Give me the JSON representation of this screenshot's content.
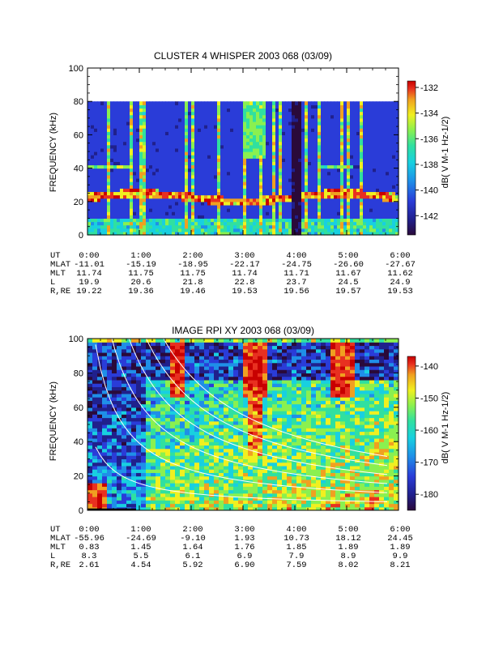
{
  "chart_data": [
    {
      "type": "heatmap",
      "title": "CLUSTER 4 WHISPER 2003 068 (03/09)",
      "ylabel": "FREQUENCY (kHz)",
      "ylim": [
        0,
        100
      ],
      "yticks": [
        0,
        20,
        40,
        60,
        80,
        100
      ],
      "data_ylim": [
        0,
        80
      ],
      "xlim": [
        "0:00",
        "6:00"
      ],
      "colorbar": {
        "label": "dB( V M⁻¹ Hz⁻¹ᐟ²)",
        "label_text": "dB( V M-1 Hz-1/2)",
        "range": [
          -143.5,
          -131.5
        ],
        "ticks": [
          -132,
          -134,
          -136,
          -138,
          -140,
          -142
        ]
      },
      "ephemeris": {
        "rows": [
          {
            "name": "UT",
            "values": [
              "0:00",
              "1:00",
              "2:00",
              "3:00",
              "4:00",
              "5:00",
              "6:00"
            ]
          },
          {
            "name": "MLAT",
            "values": [
              "-11.01",
              "-15.19",
              "-18.95",
              "-22.17",
              "-24.75",
              "-26.60",
              "-27.67"
            ]
          },
          {
            "name": "MLT",
            "values": [
              "11.74",
              "11.75",
              "11.75",
              "11.74",
              "11.71",
              "11.67",
              "11.62"
            ]
          },
          {
            "name": "L",
            "values": [
              "19.9",
              "20.6",
              "21.8",
              "22.8",
              "23.7",
              "24.5",
              "24.9"
            ]
          },
          {
            "name": "R,RE",
            "values": [
              "19.22",
              "19.36",
              "19.46",
              "19.53",
              "19.56",
              "19.57",
              "19.53"
            ]
          }
        ]
      }
    },
    {
      "type": "heatmap",
      "title": "IMAGE RPI XY 2003 068 (03/09)",
      "ylabel": "FREQUENCY (kHz)",
      "ylim": [
        0,
        100
      ],
      "yticks": [
        0,
        20,
        40,
        60,
        80,
        100
      ],
      "xlim": [
        "0:00",
        "6:00"
      ],
      "colorbar": {
        "label_text": "dB( V M-1 Hz-1/2)",
        "range": [
          -185,
          -137
        ],
        "ticks": [
          -140,
          -150,
          -160,
          -170,
          -180
        ]
      },
      "ephemeris": {
        "rows": [
          {
            "name": "UT",
            "values": [
              "0:00",
              "1:00",
              "2:00",
              "3:00",
              "4:00",
              "5:00",
              "6:00"
            ]
          },
          {
            "name": "MLAT",
            "values": [
              "-55.96",
              "-24.69",
              "-9.10",
              "1.93",
              "10.73",
              "18.12",
              "24.45"
            ]
          },
          {
            "name": "MLT",
            "values": [
              "0.83",
              "1.45",
              "1.64",
              "1.76",
              "1.85",
              "1.89",
              "1.89"
            ]
          },
          {
            "name": "L",
            "values": [
              "8.3",
              "5.5",
              "6.1",
              "6.9",
              "7.9",
              "8.9",
              "9.9"
            ]
          },
          {
            "name": "R,RE",
            "values": [
              "2.61",
              "4.54",
              "5.92",
              "6.90",
              "7.59",
              "8.02",
              "8.21"
            ]
          }
        ]
      }
    }
  ],
  "colors": {
    "scale": [
      "#2a0a3a",
      "#20208c",
      "#2a3cd8",
      "#1f8fe8",
      "#18d0e0",
      "#30e0a0",
      "#8af050",
      "#f0f020",
      "#f0a020",
      "#e83020",
      "#c80000"
    ],
    "axis": "#000000",
    "curves": "#ffffff"
  }
}
